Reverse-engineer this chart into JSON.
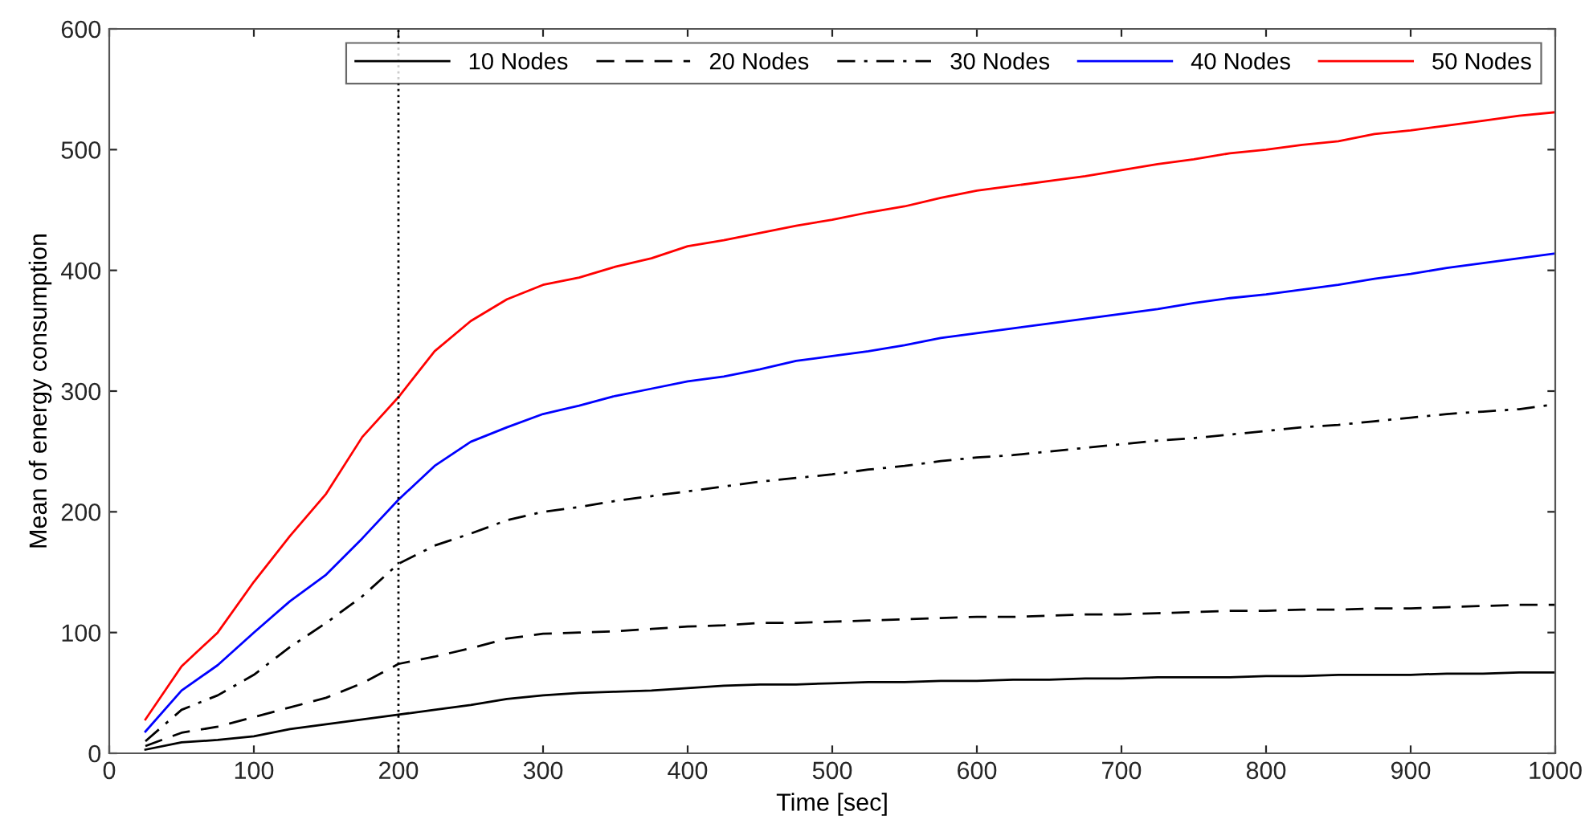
{
  "chart_data": {
    "type": "line",
    "xlabel": "Time [sec]",
    "ylabel": "Mean of energy consumption",
    "x": [
      25,
      50,
      75,
      100,
      125,
      150,
      175,
      200,
      225,
      250,
      275,
      300,
      325,
      350,
      375,
      400,
      425,
      450,
      475,
      500,
      525,
      550,
      575,
      600,
      625,
      650,
      675,
      700,
      725,
      750,
      775,
      800,
      825,
      850,
      875,
      900,
      925,
      950,
      975,
      1000
    ],
    "series": [
      {
        "name": "10 Nodes",
        "color": "#000000",
        "line_style": "solid",
        "values": [
          3,
          9,
          11,
          14,
          20,
          24,
          28,
          32,
          36,
          40,
          45,
          48,
          50,
          51,
          52,
          54,
          56,
          57,
          57,
          58,
          59,
          59,
          60,
          60,
          61,
          61,
          62,
          62,
          63,
          63,
          63,
          64,
          64,
          65,
          65,
          65,
          66,
          66,
          67,
          67
        ]
      },
      {
        "name": "20 Nodes",
        "color": "#000000",
        "line_style": "dashed",
        "values": [
          6,
          17,
          22,
          30,
          38,
          46,
          58,
          74,
          80,
          87,
          95,
          99,
          100,
          101,
          103,
          105,
          106,
          108,
          108,
          109,
          110,
          111,
          112,
          113,
          113,
          114,
          115,
          115,
          116,
          117,
          118,
          118,
          119,
          119,
          120,
          120,
          121,
          122,
          123,
          123
        ]
      },
      {
        "name": "30 Nodes",
        "color": "#000000",
        "line_style": "dashdot",
        "values": [
          10,
          36,
          48,
          65,
          88,
          108,
          130,
          157,
          172,
          182,
          193,
          200,
          204,
          209,
          213,
          217,
          221,
          225,
          228,
          231,
          235,
          238,
          242,
          245,
          247,
          250,
          253,
          256,
          259,
          261,
          264,
          267,
          270,
          272,
          275,
          278,
          281,
          283,
          285,
          289
        ]
      },
      {
        "name": "40 Nodes",
        "color": "#0000ff",
        "line_style": "solid",
        "values": [
          18,
          52,
          73,
          100,
          126,
          148,
          178,
          210,
          238,
          258,
          270,
          281,
          288,
          296,
          302,
          308,
          312,
          318,
          325,
          329,
          333,
          338,
          344,
          348,
          352,
          356,
          360,
          364,
          368,
          373,
          377,
          380,
          384,
          388,
          393,
          397,
          402,
          406,
          410,
          414
        ]
      },
      {
        "name": "50 Nodes",
        "color": "#ff0000",
        "line_style": "solid",
        "values": [
          28,
          72,
          100,
          142,
          180,
          215,
          262,
          295,
          333,
          358,
          376,
          388,
          394,
          403,
          410,
          420,
          425,
          431,
          437,
          442,
          448,
          453,
          460,
          466,
          470,
          474,
          478,
          483,
          488,
          492,
          497,
          500,
          504,
          507,
          513,
          516,
          520,
          524,
          528,
          531
        ]
      }
    ],
    "xlim": [
      0,
      1000
    ],
    "ylim": [
      0,
      600
    ],
    "xticks": [
      0,
      100,
      200,
      300,
      400,
      500,
      600,
      700,
      800,
      900,
      1000
    ],
    "yticks": [
      0,
      100,
      200,
      300,
      400,
      500,
      600
    ],
    "ref_lines": [
      {
        "axis": "x",
        "value": 200,
        "color": "#000000",
        "line_style": "dotted"
      }
    ],
    "grid": false,
    "legend": "top right"
  }
}
